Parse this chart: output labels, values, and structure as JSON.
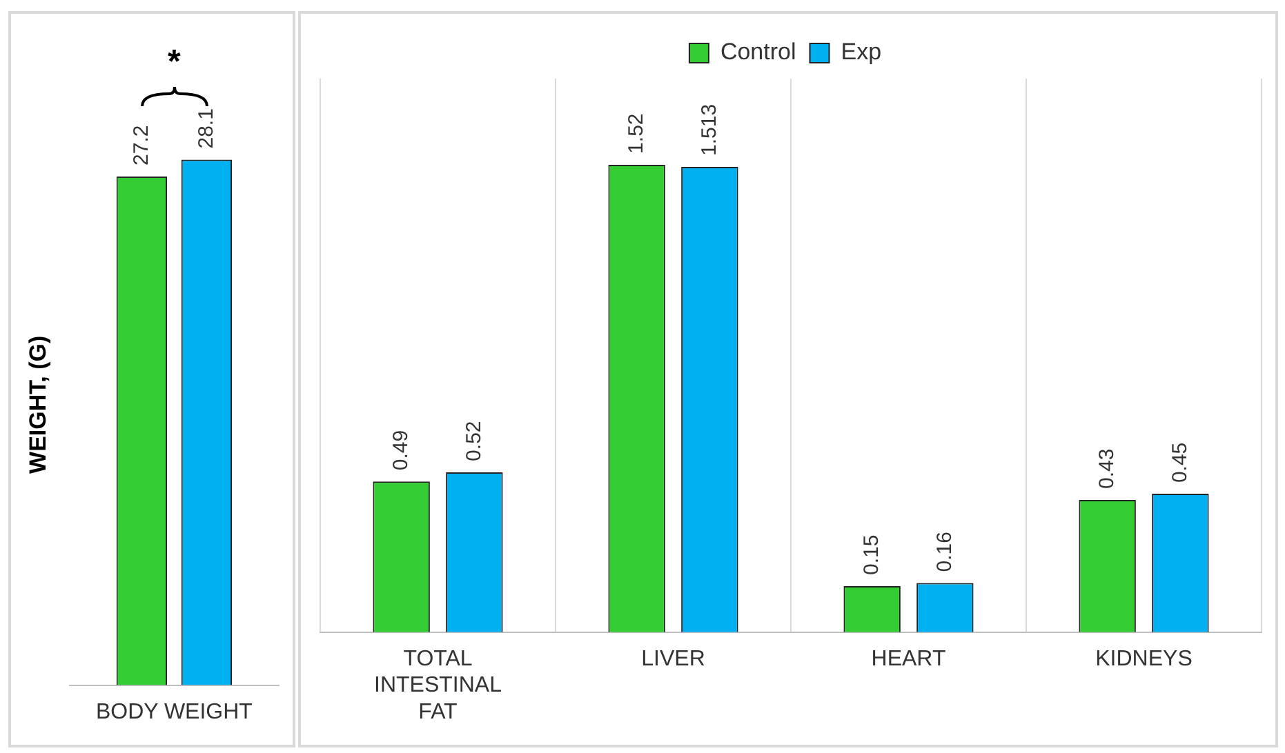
{
  "chart_data": [
    {
      "type": "bar",
      "ylabel": "WEIGHT, (G)",
      "categories": [
        "BODY WEIGHT"
      ],
      "series": [
        {
          "color": "#33cc33",
          "values": [
            27.2
          ]
        },
        {
          "color": "#00b0f0",
          "values": [
            28.1
          ]
        }
      ],
      "tick_labels": "x",
      "data_labels": true,
      "grid": false,
      "legend": false,
      "annotations": [
        "*"
      ]
    },
    {
      "type": "bar",
      "categories": [
        "TOTAL INTESTINAL FAT",
        "LIVER",
        "HEART",
        "KIDNEYS"
      ],
      "series": [
        {
          "name": "Control",
          "color": "#33cc33",
          "values": [
            0.49,
            1.52,
            0.15,
            0.43
          ]
        },
        {
          "name": "Exp",
          "color": "#00b0f0",
          "values": [
            0.52,
            1.513,
            0.16,
            0.45
          ]
        }
      ],
      "ylim": [
        0,
        1.8
      ],
      "tick_labels": "x",
      "data_labels": true,
      "grid": "x",
      "legend": "top"
    }
  ]
}
